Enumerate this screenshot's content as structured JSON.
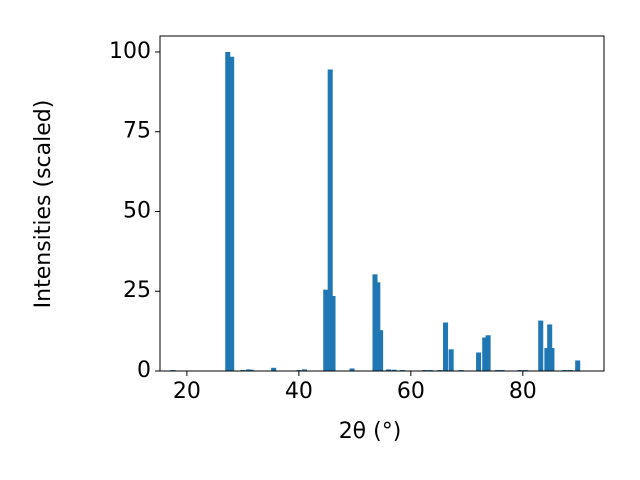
{
  "chart_data": {
    "type": "bar",
    "x_label": "2θ (°)",
    "y_label": "Intensities (scaled)",
    "color": "#1f77b4",
    "x": [
      17.5,
      27.3,
      28.0,
      30.0,
      31.0,
      31.5,
      35.5,
      40.0,
      41.0,
      44.8,
      45.6,
      46.1,
      49.5,
      53.6,
      54.1,
      54.6,
      56.0,
      57.0,
      58.5,
      62.5,
      63.5,
      65.2,
      66.2,
      67.2,
      69.0,
      72.1,
      73.2,
      73.8,
      75.5,
      76.3,
      79.5,
      80.5,
      83.2,
      84.3,
      84.8,
      85.2,
      87.5,
      88.5,
      89.8
    ],
    "values": [
      0.3,
      100,
      98.5,
      0.3,
      0.5,
      0.4,
      1.0,
      0.3,
      0.5,
      25.5,
      94.5,
      23.5,
      0.8,
      30.3,
      27.8,
      12.8,
      0.5,
      0.4,
      0.3,
      0.3,
      0.3,
      0.3,
      15.2,
      6.8,
      0.3,
      5.8,
      10.5,
      11.2,
      0.3,
      0.3,
      0.3,
      0.3,
      15.8,
      7.2,
      14.6,
      7.2,
      0.3,
      0.3,
      3.3
    ],
    "xlim": [
      15.2,
      94.5
    ],
    "ylim": [
      0,
      105
    ],
    "xticks": [
      20,
      40,
      60,
      80
    ],
    "yticks": [
      0,
      25,
      50,
      75,
      100
    ]
  }
}
